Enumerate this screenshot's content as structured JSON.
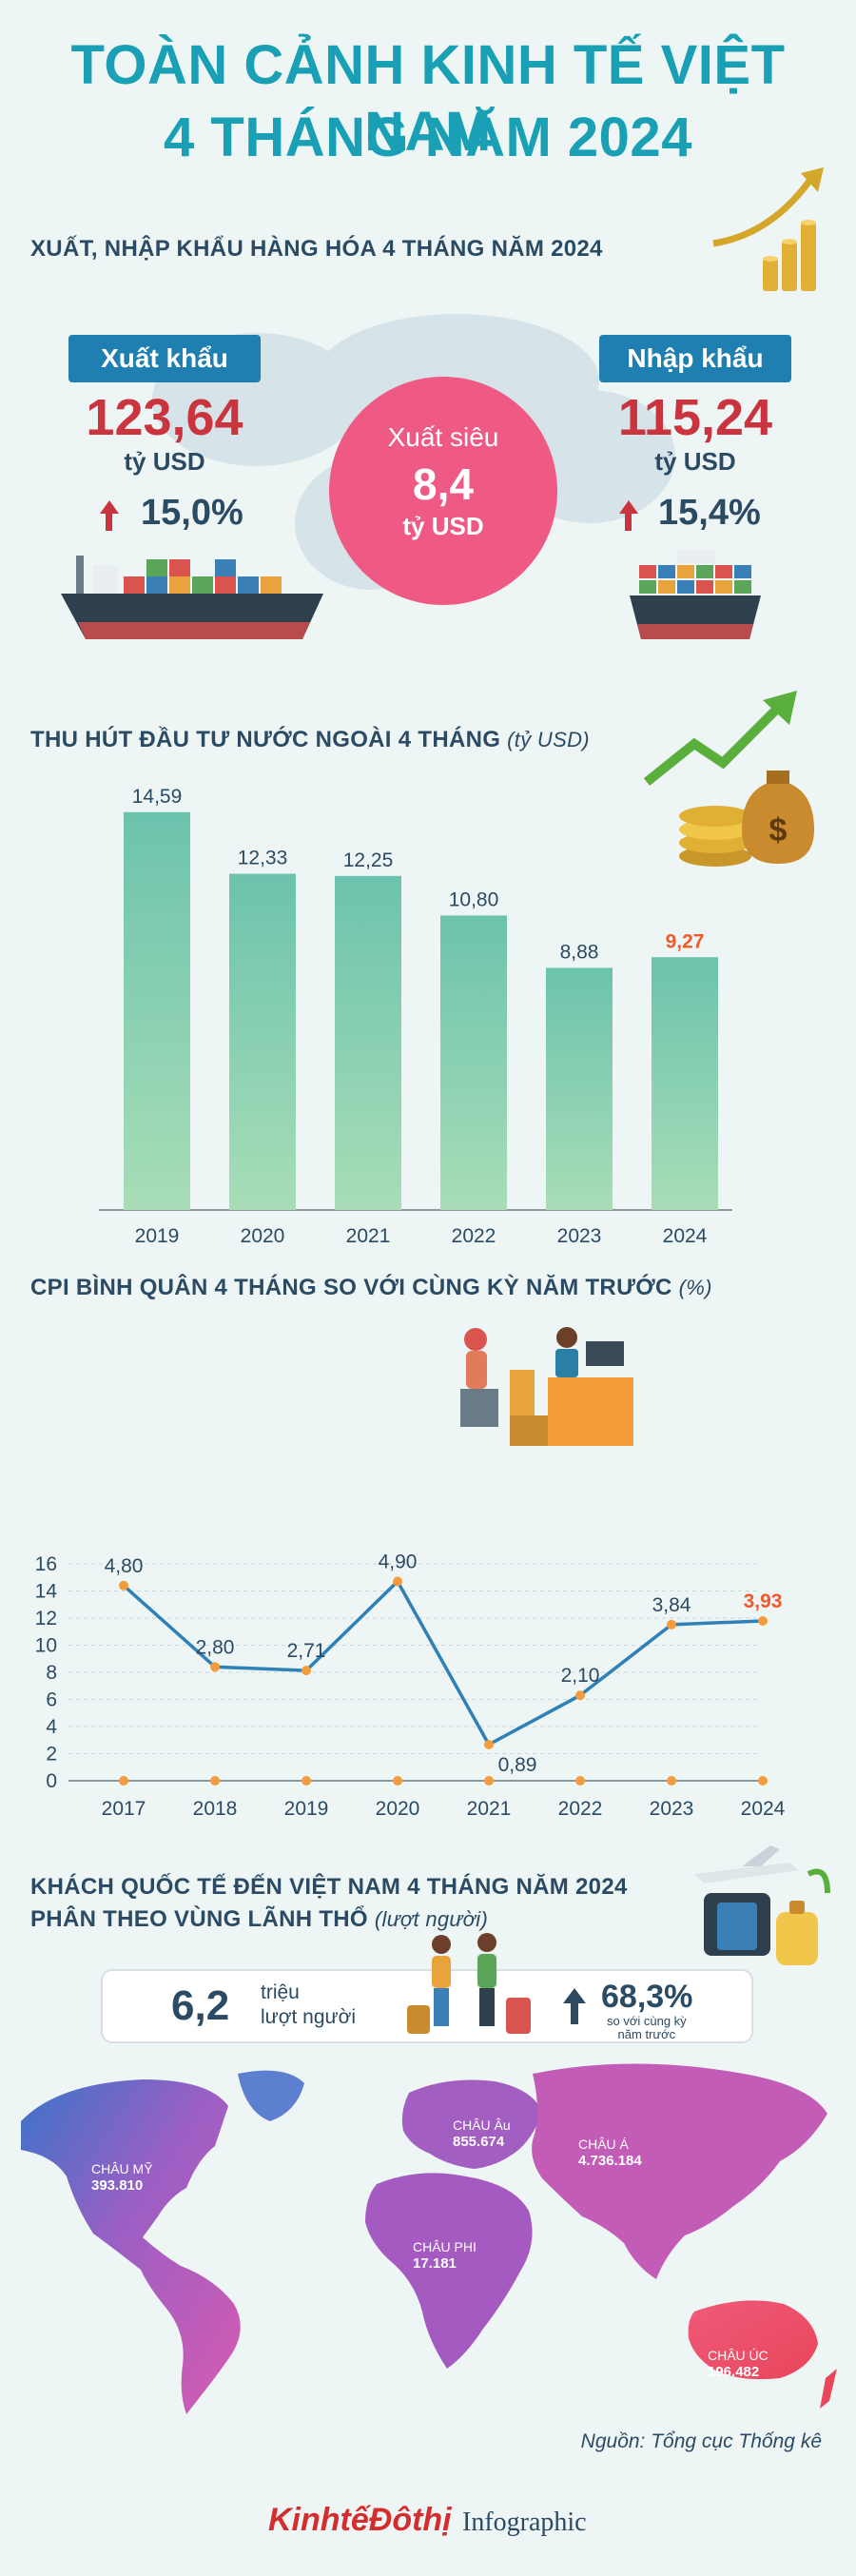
{
  "header": {
    "title_line1": "TOÀN CẢNH KINH TẾ VIỆT NAM",
    "title_line2": "4 THÁNG NĂM 2024"
  },
  "trade": {
    "title": "XUẤT, NHẬP KHẨU HÀNG HÓA 4 THÁNG NĂM 2024",
    "export_label": "Xuất khẩu",
    "export_value": "123,64",
    "export_unit": "tỷ USD",
    "export_growth": "15,0%",
    "import_label": "Nhập khẩu",
    "import_value": "115,24",
    "import_unit": "tỷ USD",
    "import_growth": "15,4%",
    "surplus_label": "Xuất siêu",
    "surplus_value": "8,4",
    "surplus_unit": "tỷ USD"
  },
  "fdi": {
    "title": "THU HÚT ĐẦU TƯ NƯỚC NGOÀI 4 THÁNG",
    "unit": "(tỷ USD)"
  },
  "cpi": {
    "title": "CPI BÌNH QUÂN 4 THÁNG SO VỚI CÙNG KỲ NĂM TRƯỚC",
    "unit": "(%)"
  },
  "tourism": {
    "title_line1": "KHÁCH QUỐC TẾ ĐẾN VIỆT NAM 4 THÁNG NĂM 2024",
    "title_line2": "PHÂN THEO VÙNG LÃNH THỔ",
    "unit": "(lượt người)",
    "total_value": "6,2",
    "total_unit1": "triệu",
    "total_unit2": "lượt người",
    "growth": "68,3%",
    "growth_note1": "so với cùng kỳ",
    "growth_note2": "năm trước",
    "regions": [
      {
        "name": "CHÂU MỸ",
        "value": "393.810"
      },
      {
        "name": "CHÂU Âu",
        "value": "855.674"
      },
      {
        "name": "CHÂU Á",
        "value": "4.736.184"
      },
      {
        "name": "CHÂU PHI",
        "value": "17.181"
      },
      {
        "name": "CHÂU ÚC",
        "value": "196.482"
      }
    ]
  },
  "footer": {
    "source": "Nguồn: Tổng cục Thống kê",
    "brand": "KinhtếĐôthị",
    "brand_suffix": "Infographic"
  },
  "colors": {
    "title": "#1aa0b4",
    "bar_top": "#6cc3ad",
    "bar_bottom": "#a8ddb7",
    "line": "#2f80b6",
    "point": "#f39c39",
    "highlight": "#f0592a",
    "surplus": "#ee5a84",
    "pill": "#1f7fb0",
    "red": "#c9343f"
  },
  "chart_data": [
    {
      "type": "bar",
      "categories": [
        "2019",
        "2020",
        "2021",
        "2022",
        "2023",
        "2024"
      ],
      "values": [
        14.59,
        12.33,
        12.25,
        10.8,
        8.88,
        9.27
      ],
      "value_labels": [
        "14,59",
        "12,33",
        "12,25",
        "10,80",
        "8,88",
        "9,27"
      ],
      "highlight_index": 5,
      "ylim": [
        0,
        15
      ]
    },
    {
      "type": "line",
      "x": [
        "2017",
        "2018",
        "2019",
        "2020",
        "2021",
        "2022",
        "2023",
        "2024"
      ],
      "values": [
        4.8,
        2.8,
        2.71,
        4.9,
        0.89,
        2.1,
        3.84,
        3.93
      ],
      "value_labels": [
        "4,80",
        "2,80",
        "2,71",
        "4,90",
        "0,89",
        "2,10",
        "3,84",
        "3,93"
      ],
      "highlight_index": 7,
      "yticks": [
        0,
        2,
        4,
        6,
        8,
        10,
        12,
        14,
        16
      ],
      "ytick_labels": [
        "0",
        "2",
        "4",
        "6",
        "8",
        "10",
        "12",
        "14",
        "16"
      ]
    }
  ]
}
